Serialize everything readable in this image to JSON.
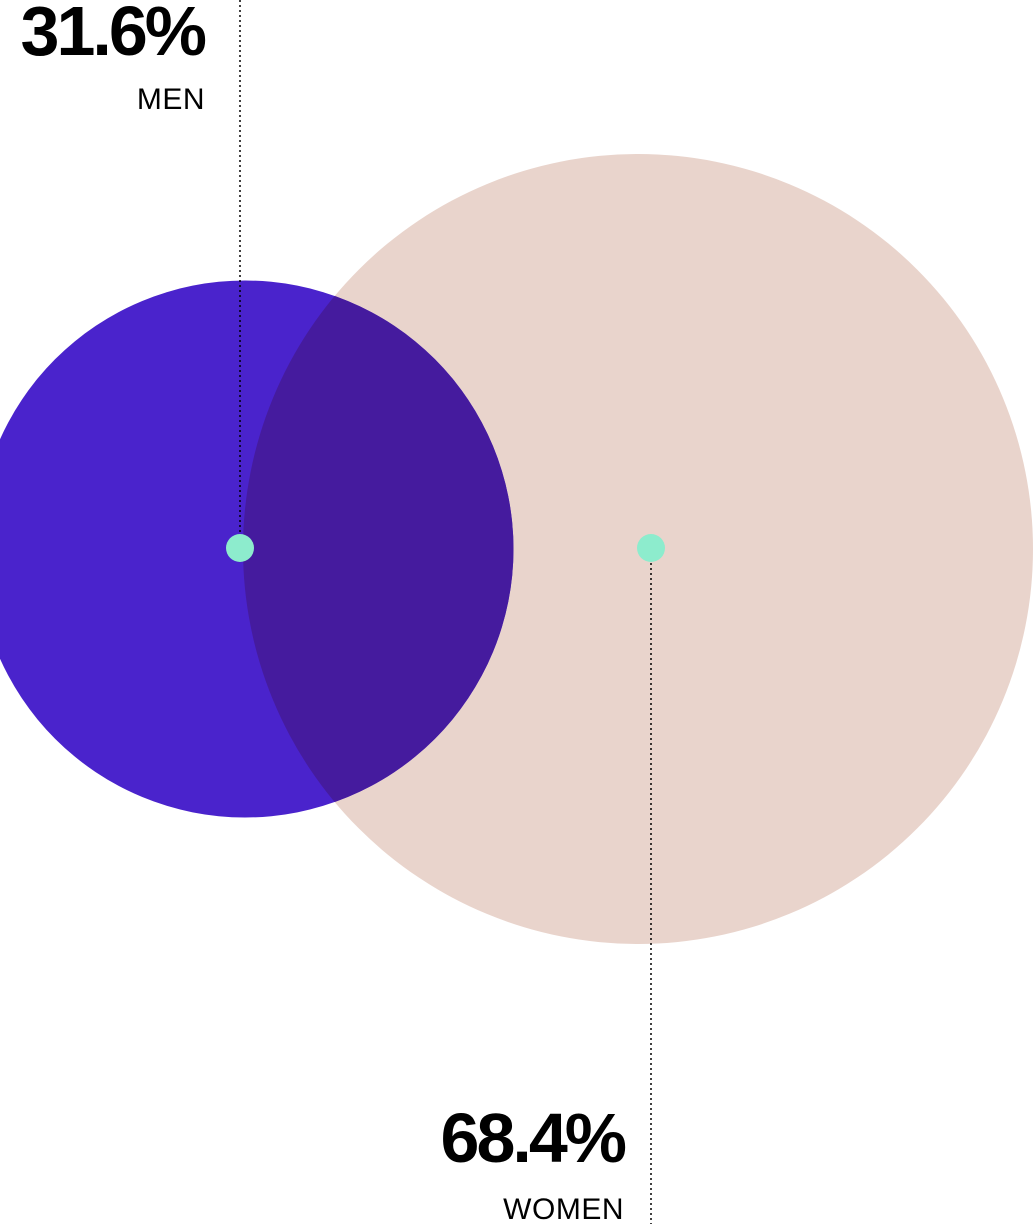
{
  "chart_data": {
    "type": "bubble",
    "series": [
      {
        "name": "MEN",
        "value": 31.6,
        "value_label": "31.6%",
        "color": "#4a23cc"
      },
      {
        "name": "WOMEN",
        "value": 68.4,
        "value_label": "68.4%",
        "color": "#e9d4cc"
      }
    ],
    "overlap_color": "#451b9e",
    "marker_color": "#8deccd",
    "leader_line_style": "dotted"
  }
}
